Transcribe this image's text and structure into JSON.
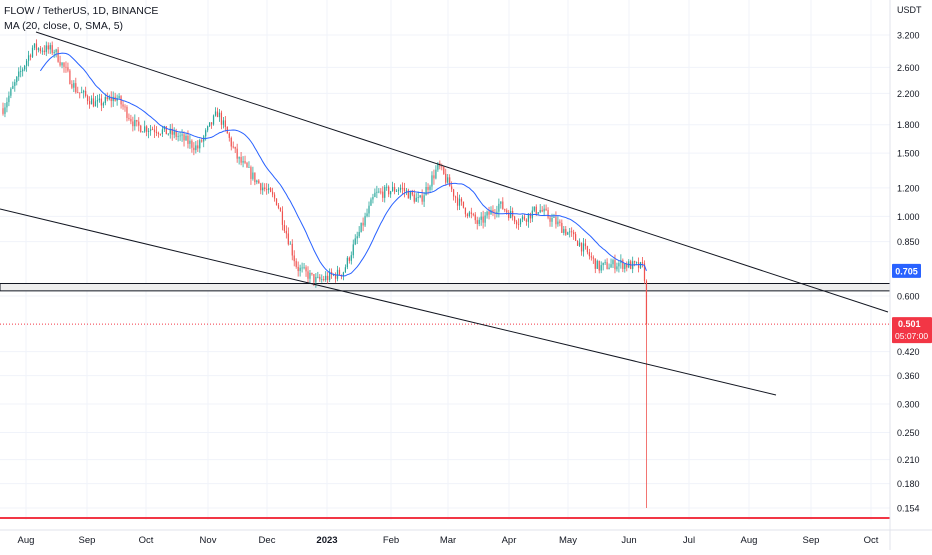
{
  "legend": {
    "title": "FLOW / TetherUS, 1D, BINANCE",
    "indicator": "MA (20, close, 0, SMA, 5)"
  },
  "chart_data": {
    "type": "candlestick",
    "symbol": "FLOW / TetherUS",
    "interval": "1D",
    "exchange": "BINANCE",
    "y_scale": "log",
    "currency_label": "USDT",
    "ylim": [
      0.15,
      3.4
    ],
    "y_ticks": [
      "3.200",
      "2.600",
      "2.200",
      "1.800",
      "1.500",
      "1.200",
      "1.000",
      "0.850",
      "0.600",
      "0.420",
      "0.360",
      "0.300",
      "0.250",
      "0.210",
      "0.180",
      "0.154"
    ],
    "x_ticks": [
      "Aug",
      "Sep",
      "Oct",
      "Nov",
      "Dec",
      "2023",
      "Feb",
      "Mar",
      "Apr",
      "May",
      "Jun",
      "Jul",
      "Aug",
      "Sep",
      "Oct"
    ],
    "price_labels": {
      "ma_value": "0.705",
      "last_price": "0.501",
      "countdown": "05:07:00"
    },
    "colors": {
      "up": "#26a69a",
      "down": "#ef5350",
      "ma": "#2962ff",
      "support_line": "#f23645",
      "trend_lines": "#131722",
      "ma_label_bg": "#2962ff",
      "price_label_bg": "#f23645"
    },
    "series": [
      {
        "name": "FLOW / TetherUS",
        "kind": "ohlc",
        "anchors": [
          [
            "Aug",
            2.0
          ],
          [
            "Aug",
            2.95
          ],
          [
            "Aug",
            2.9
          ],
          [
            "Aug",
            2.25
          ],
          [
            "Sep",
            2.05
          ],
          [
            "Sep",
            2.15
          ],
          [
            "Sep",
            1.78
          ],
          [
            "Oct",
            1.75
          ],
          [
            "Oct",
            1.68
          ],
          [
            "Oct",
            1.55
          ],
          [
            "Nov",
            1.95
          ],
          [
            "Nov",
            1.45
          ],
          [
            "Nov",
            1.25
          ],
          [
            "Dec",
            1.1
          ],
          [
            "Dec",
            0.72
          ],
          [
            "Dec",
            0.66
          ],
          [
            "2023",
            0.7
          ],
          [
            "2023",
            1.15
          ],
          [
            "Feb",
            1.2
          ],
          [
            "Feb",
            1.1
          ],
          [
            "Feb",
            1.38
          ],
          [
            "Mar",
            1.1
          ],
          [
            "Mar",
            0.95
          ],
          [
            "Mar",
            1.08
          ],
          [
            "Apr",
            0.97
          ],
          [
            "Apr",
            1.05
          ],
          [
            "Apr",
            0.95
          ],
          [
            "May",
            0.85
          ],
          [
            "May",
            0.72
          ],
          [
            "May",
            0.74
          ],
          [
            "Jun",
            0.72
          ],
          [
            "Jun",
            0.501
          ]
        ]
      },
      {
        "name": "MA (20, close, 0, SMA, 5)",
        "kind": "line",
        "last_value": 0.705
      }
    ],
    "lows": {
      "Jun": 0.154
    },
    "horizontal_levels": [
      {
        "kind": "zone",
        "value_range": [
          0.62,
          0.65
        ],
        "color": "#131722"
      },
      {
        "kind": "line",
        "value": 0.15,
        "color": "#f23645"
      }
    ],
    "trend_lines": [
      {
        "from": [
          "Aug",
          3.2
        ],
        "to": [
          "Oct",
          0.56
        ]
      },
      {
        "from": [
          "Aug",
          1.1
        ],
        "to": [
          "Oct",
          0.33
        ]
      }
    ]
  }
}
